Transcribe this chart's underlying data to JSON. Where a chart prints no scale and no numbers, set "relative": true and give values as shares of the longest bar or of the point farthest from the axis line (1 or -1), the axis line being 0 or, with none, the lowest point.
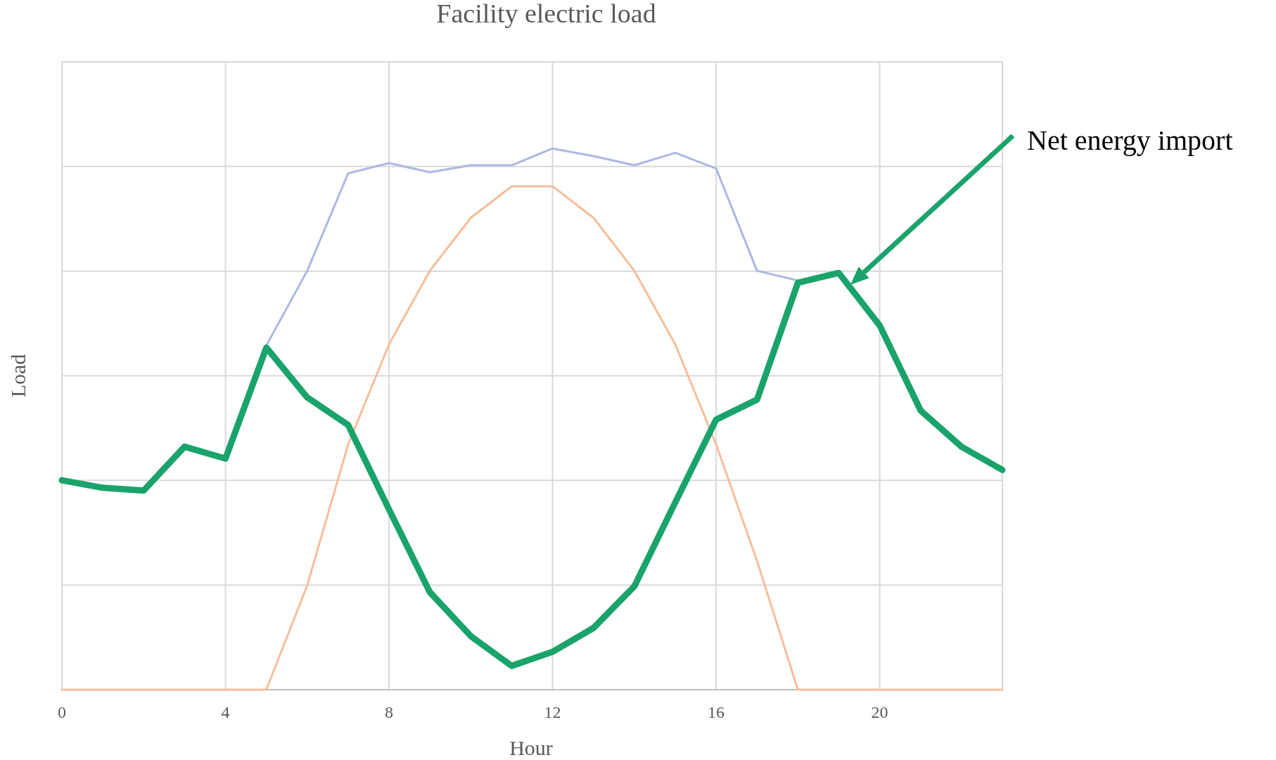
{
  "chart_data": {
    "type": "line",
    "title": "Facility electric load",
    "xlabel": "Hour",
    "ylabel": "Load",
    "relative": true,
    "grid": true,
    "xlim": [
      0,
      23
    ],
    "xticks": [
      0,
      4,
      8,
      12,
      16,
      20
    ],
    "x": [
      0,
      1,
      2,
      3,
      4,
      5,
      6,
      7,
      8,
      9,
      10,
      11,
      12,
      13,
      14,
      15,
      16,
      17,
      18,
      19,
      20,
      21,
      22,
      23
    ],
    "series": [
      {
        "color": "#a9b9e2",
        "values": [
          null,
          null,
          null,
          null,
          null,
          0.636,
          0.774,
          0.954,
          0.973,
          0.956,
          0.969,
          0.969,
          1,
          0.986,
          0.969,
          0.992,
          0.963,
          0.774,
          0.756,
          null,
          null,
          null,
          null,
          null
        ]
      },
      {
        "color": "#f6be9a",
        "values": [
          0,
          0,
          0,
          0,
          0,
          0,
          0.193,
          0.453,
          0.638,
          0.774,
          0.872,
          0.93,
          0.93,
          0.872,
          0.774,
          0.638,
          0.453,
          0.238,
          0,
          0,
          0,
          0,
          0,
          0
        ]
      },
      {
        "color": "#1aa36b",
        "values": [
          0.387,
          0.373,
          0.368,
          0.449,
          0.427,
          0.632,
          0.54,
          0.489,
          0.333,
          0.18,
          0.099,
          0.044,
          0.07,
          0.114,
          0.191,
          0.346,
          0.499,
          0.536,
          0.752,
          0.77,
          0.673,
          0.516,
          0.449,
          0.406
        ]
      }
    ],
    "annotations": [
      "Net energy import"
    ]
  }
}
